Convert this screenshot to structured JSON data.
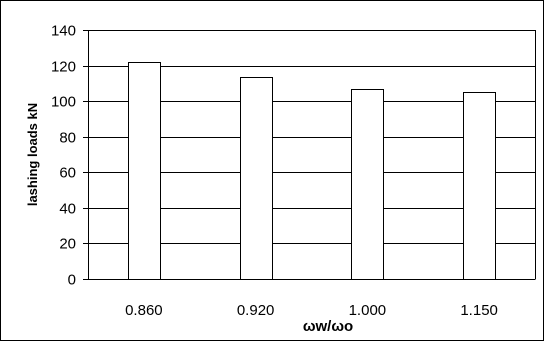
{
  "chart_data": {
    "type": "bar",
    "title": "",
    "xlabel": "ωw/ωo",
    "ylabel": "lashing loads kN",
    "categories": [
      "0.860",
      "0.920",
      "1.000",
      "1.150"
    ],
    "values": [
      122,
      113.5,
      107,
      105
    ],
    "ylim": [
      0,
      140
    ],
    "yticks": [
      0,
      20,
      40,
      60,
      80,
      100,
      120,
      140
    ],
    "grid": true,
    "legend": "none",
    "colors": {
      "bar_fill": "#ffffff",
      "bar_stroke": "#000000",
      "grid": "#000000"
    }
  }
}
